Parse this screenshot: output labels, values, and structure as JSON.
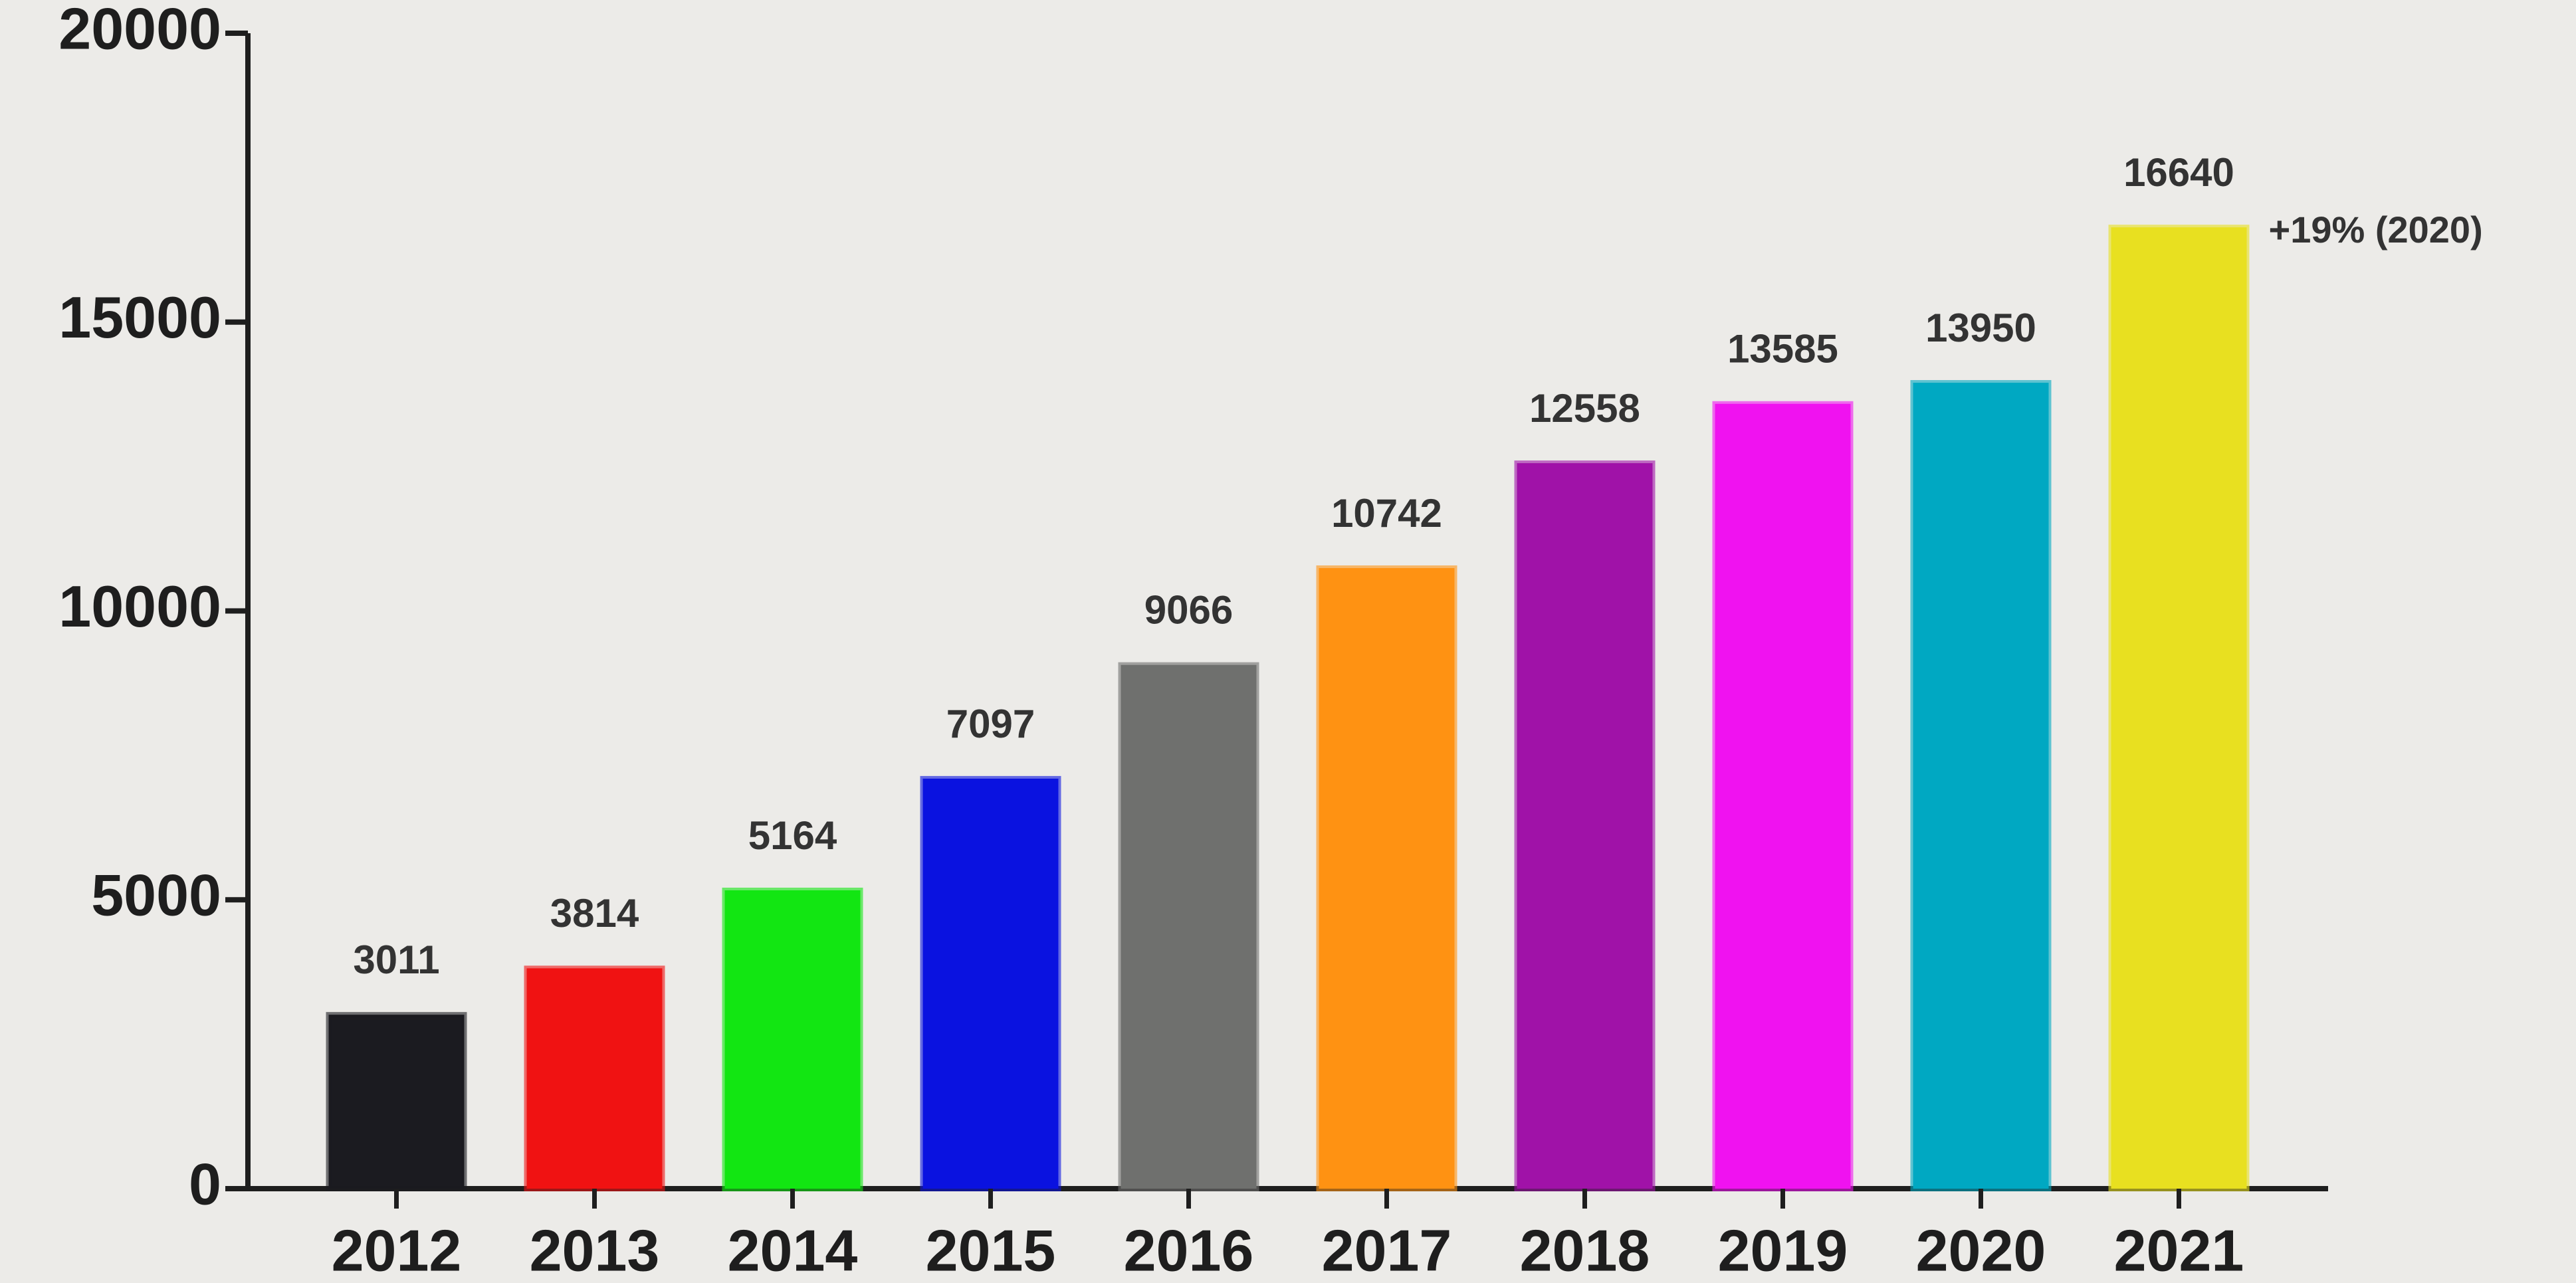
{
  "chart_data": {
    "type": "bar",
    "categories": [
      "2012",
      "2013",
      "2014",
      "2015",
      "2016",
      "2017",
      "2018",
      "2019",
      "2020",
      "2021"
    ],
    "values": [
      3011,
      3814,
      5164,
      7097,
      9066,
      10742,
      12558,
      13585,
      13950,
      16640
    ],
    "colors": [
      "#1b1b20",
      "#f01212",
      "#12e612",
      "#0a12e0",
      "#6f706e",
      "#ff9212",
      "#a012a8",
      "#f012f0",
      "#00a8c2",
      "#e8e020"
    ],
    "ylim": [
      0,
      20000
    ],
    "yticks": [
      0,
      5000,
      10000,
      15000,
      20000
    ],
    "annotation": "+19% (2020)"
  }
}
